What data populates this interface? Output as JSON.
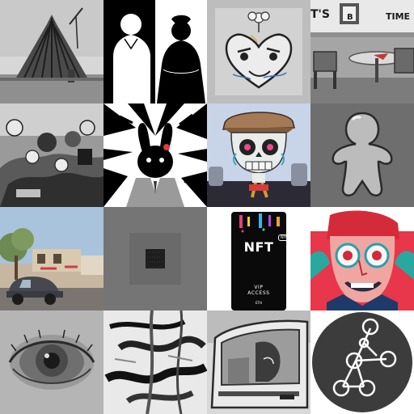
{
  "grid": {
    "columns": 4,
    "rows": 4
  },
  "tiles": [
    {
      "icon": "cathedral-construction-photo"
    },
    {
      "icon": "couple-silhouettes"
    },
    {
      "icon": "heart-face-drawing"
    },
    {
      "icon": "diner-interior",
      "sign_text": {
        "left": "T'S",
        "middle": "B",
        "right": "TIME"
      }
    },
    {
      "icon": "monochrome-crowd-collage"
    },
    {
      "icon": "rabbit-head-op-art"
    },
    {
      "icon": "skull-flatcap-graveyard"
    },
    {
      "icon": "gingerbread-silhouette"
    },
    {
      "icon": "street-beetle-car"
    },
    {
      "icon": "small-dark-square"
    },
    {
      "icon": "nft-vip-card",
      "title": "NFT",
      "badge": "NYC",
      "vip_line1": "VIP",
      "vip_line2": "ACCESS",
      "footer": "ETH"
    },
    {
      "icon": "psychedelic-face"
    },
    {
      "icon": "eye-closeup"
    },
    {
      "icon": "abstract-brushstrokes"
    },
    {
      "icon": "car-window-interior"
    },
    {
      "icon": "network-graph-logo"
    }
  ],
  "colors": {
    "neon_bg": "#e8364a",
    "face_blue": "#2aa8a0",
    "skull_bg": "#c8d4e8",
    "tile_gray": "#6e6e6e",
    "logo_dark": "#3c3c3c"
  }
}
